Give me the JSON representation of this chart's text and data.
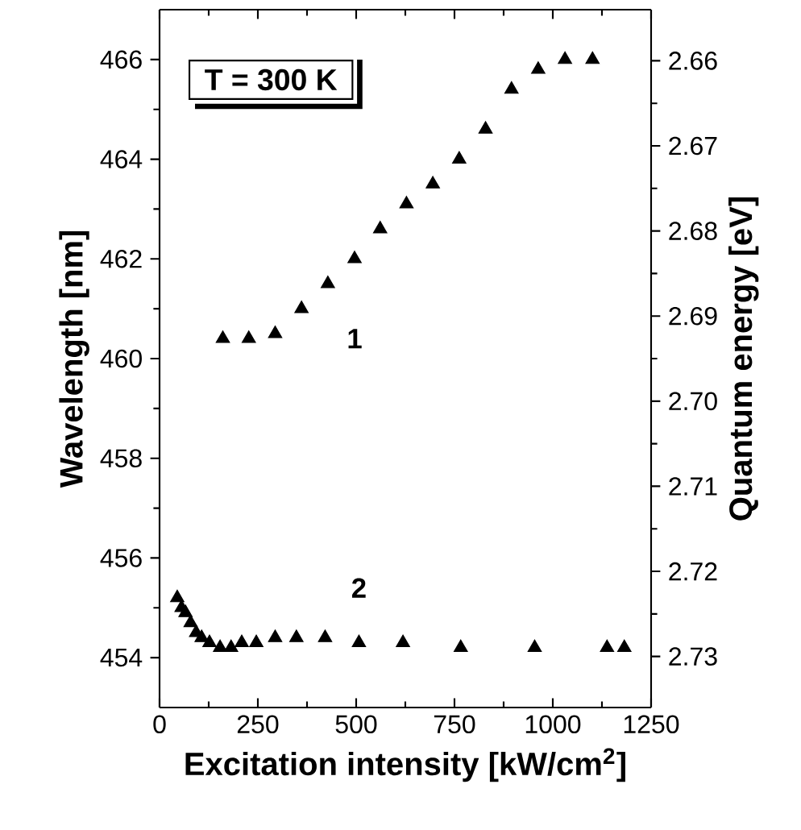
{
  "chart_data": {
    "type": "scatter",
    "xlabel": "Excitation intensity [kW/cm$^{2}$]",
    "ylabel": "Wavelength [nm]",
    "y2label": "Quantum energy [eV]",
    "annotations": [
      "T = 300 K"
    ],
    "marker": "triangle",
    "legend": false,
    "grid": false,
    "xlim": [
      0,
      1250
    ],
    "xticks": [
      0,
      250,
      500,
      750,
      1000,
      1250
    ],
    "ylim": [
      453,
      467
    ],
    "yticks": [
      454,
      456,
      458,
      460,
      462,
      464,
      466
    ],
    "y2lim": [
      2.736,
      2.654
    ],
    "y2ticks": [
      2.66,
      2.67,
      2.68,
      2.69,
      {
        "value": 2.7,
        "label": "2.70"
      },
      2.71,
      2.72,
      2.73
    ],
    "series": [
      {
        "name": "1",
        "color": "#000000",
        "x": [
          161,
          227,
          294,
          361,
          428,
          496,
          561,
          628,
          695,
          762,
          829,
          895,
          963,
          1031,
          1101
        ],
        "values": [
          460.4,
          460.4,
          460.5,
          461.0,
          461.5,
          462.0,
          462.6,
          463.1,
          463.5,
          464.0,
          464.6,
          465.4,
          465.8,
          466.0,
          466.0
        ]
      },
      {
        "name": "2",
        "color": "#000000",
        "x": [
          45,
          56,
          66,
          79,
          93,
          107,
          127,
          154,
          182,
          209,
          246,
          294,
          348,
          421,
          507,
          619,
          766,
          954,
          1138,
          1182
        ],
        "values": [
          455.2,
          455.0,
          454.9,
          454.7,
          454.5,
          454.4,
          454.3,
          454.2,
          454.2,
          454.3,
          454.3,
          454.4,
          454.4,
          454.4,
          454.3,
          454.3,
          454.2,
          454.2,
          454.2,
          454.2
        ]
      }
    ]
  }
}
